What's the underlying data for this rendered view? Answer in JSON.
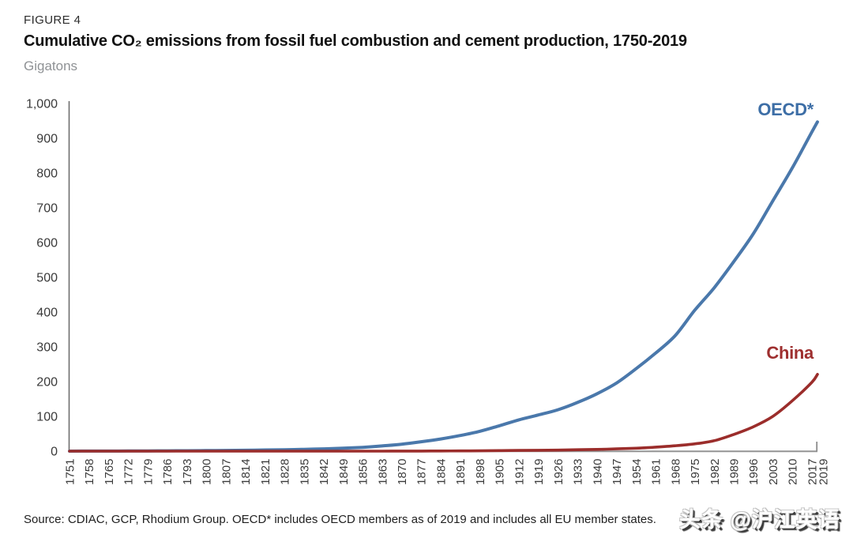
{
  "header": {
    "figure_label": "FIGURE 4",
    "title": "Cumulative CO₂ emissions from fossil fuel combustion and cement production, 1750-2019",
    "units": "Gigatons"
  },
  "footer": {
    "source": "Source: CDIAC, GCP, Rhodium Group. OECD* includes OECD members as of 2019 and includes all EU member states.",
    "watermark": "头条 @沪江英语"
  },
  "chart_data": {
    "type": "line",
    "title": "Cumulative CO₂ emissions from fossil fuel combustion and cement production, 1750-2019",
    "ylabel": "Gigatons",
    "ylim": [
      0,
      1000
    ],
    "grid": false,
    "legend_position": "end-of-line-labels",
    "axis_colors": {
      "y_axis": "#6e6e6e",
      "x_axis": "#949494",
      "tick_text": "#3a3a3a"
    },
    "y_ticks": [
      {
        "value": 0,
        "label": "0"
      },
      {
        "value": 100,
        "label": "100"
      },
      {
        "value": 200,
        "label": "200"
      },
      {
        "value": 300,
        "label": "300"
      },
      {
        "value": 400,
        "label": "400"
      },
      {
        "value": 500,
        "label": "500"
      },
      {
        "value": 600,
        "label": "600"
      },
      {
        "value": 700,
        "label": "700"
      },
      {
        "value": 800,
        "label": "800"
      },
      {
        "value": 900,
        "label": "900"
      },
      {
        "value": 1000,
        "label": "1,000"
      }
    ],
    "x": [
      1751,
      1758,
      1765,
      1772,
      1779,
      1786,
      1793,
      1800,
      1807,
      1814,
      1821,
      1828,
      1835,
      1842,
      1849,
      1856,
      1863,
      1870,
      1877,
      1884,
      1891,
      1898,
      1905,
      1912,
      1919,
      1926,
      1933,
      1940,
      1947,
      1954,
      1961,
      1968,
      1975,
      1982,
      1989,
      1996,
      2003,
      2010,
      2017,
      2019
    ],
    "series": [
      {
        "name": "OECD*",
        "color": "#4a78ab",
        "label_color": "#3d6ea6",
        "values": [
          0,
          0.2,
          0.3,
          0.5,
          0.7,
          0.9,
          1.2,
          1.5,
          2,
          2.6,
          3.3,
          4.2,
          5.3,
          6.7,
          8.5,
          11,
          15,
          20,
          27,
          35,
          45,
          57,
          73,
          90,
          104,
          119,
          140,
          165,
          196,
          237,
          282,
          332,
          405,
          470,
          545,
          625,
          720,
          815,
          918,
          947
        ]
      },
      {
        "name": "China",
        "color": "#9b2d2b",
        "label_color": "#9e2f2f",
        "values": [
          0,
          0,
          0,
          0,
          0,
          0,
          0,
          0,
          0,
          0,
          0,
          0,
          0,
          0,
          0,
          0,
          0,
          0.2,
          0.3,
          0.5,
          0.7,
          1,
          1.5,
          2,
          2.5,
          3,
          4,
          5,
          6.5,
          8.5,
          11.5,
          15.5,
          21,
          30,
          48,
          70,
          100,
          145,
          198,
          221
        ]
      }
    ]
  }
}
